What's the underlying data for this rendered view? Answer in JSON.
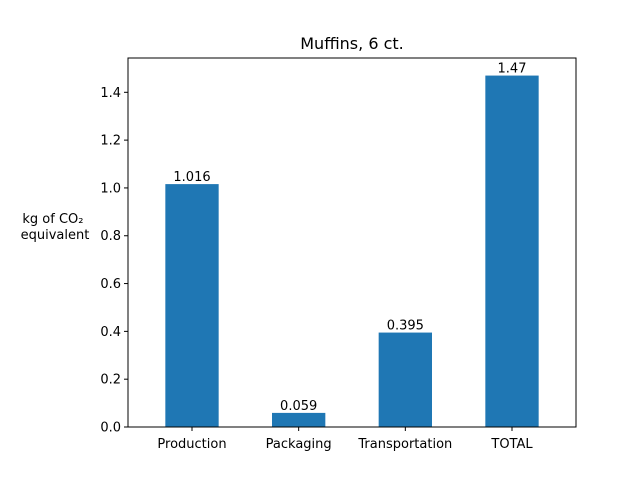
{
  "chart_data": {
    "type": "bar",
    "title": "Muffins, 6 ct.",
    "ylabel_lines": [
      "kg of CO₂",
      "equivalent"
    ],
    "xlabel": "",
    "categories": [
      "Production",
      "Packaging",
      "Transportation",
      "TOTAL"
    ],
    "values": [
      1.016,
      0.059,
      0.395,
      1.47
    ],
    "value_labels": [
      "1.016",
      "0.059",
      "0.395",
      "1.47"
    ],
    "ylim": [
      0,
      1.5435
    ],
    "yticks": [
      0.0,
      0.2,
      0.4,
      0.6,
      0.8,
      1.0,
      1.2,
      1.4
    ],
    "ytick_labels": [
      "0.0",
      "0.2",
      "0.4",
      "0.6",
      "0.8",
      "1.0",
      "1.2",
      "1.4"
    ],
    "bar_color": "#1f77b4",
    "grid": false,
    "legend": "none"
  }
}
